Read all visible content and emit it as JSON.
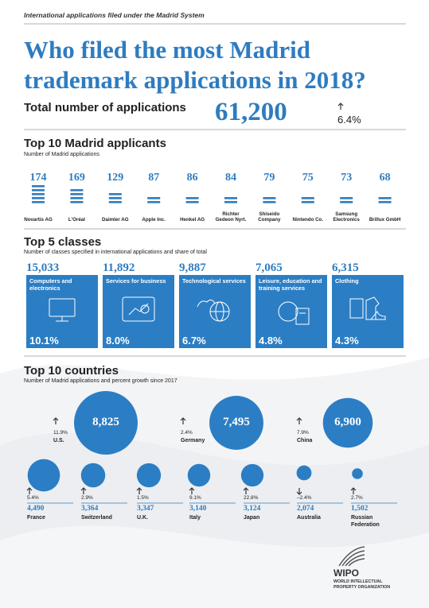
{
  "header": {
    "kicker": "International applications filed under the Madrid System",
    "title": "Who filed the most Madrid trademark applications in 2018?"
  },
  "total": {
    "label": "Total number of applications",
    "value": "61,200",
    "growth": "6.4%"
  },
  "applicants": {
    "title": "Top 10 Madrid applicants",
    "subtitle": "Number of Madrid applications",
    "items": [
      {
        "name": "Novartis AG",
        "value": 174
      },
      {
        "name": "L'Oréal",
        "value": 169
      },
      {
        "name": "Daimler AG",
        "value": 129
      },
      {
        "name": "Apple Inc.",
        "value": 87
      },
      {
        "name": "Henkel AG",
        "value": 86
      },
      {
        "name": "Richter Gedeon Nyrt.",
        "value": 84
      },
      {
        "name": "Shiseido Company",
        "value": 79
      },
      {
        "name": "Nintendo Co.",
        "value": 75
      },
      {
        "name": "Samsung Electronics",
        "value": 73
      },
      {
        "name": "Brillux GmbH",
        "value": 68
      }
    ]
  },
  "classes": {
    "title": "Top 5 classes",
    "subtitle": "Number of classes specified in international applications and share of total",
    "items": [
      {
        "name": "Computers and electronics",
        "value": "15,033",
        "share": "10.1%"
      },
      {
        "name": "Services for business",
        "value": "11,892",
        "share": "8.0%"
      },
      {
        "name": "Technological services",
        "value": "9,887",
        "share": "6.7%"
      },
      {
        "name": "Leisure, education and training services",
        "value": "7,065",
        "share": "4.8%"
      },
      {
        "name": "Clothing",
        "value": "6,315",
        "share": "4.3%"
      }
    ]
  },
  "countries": {
    "title": "Top 10 countries",
    "subtitle": "Number of Madrid applications and percent growth since 2017",
    "items": [
      {
        "name": "U.S.",
        "value": {
          "value": 8825,
          "label": "8,825"
        },
        "growth": "11.9%"
      },
      {
        "name": "Germany",
        "value": {
          "value": 7495,
          "label": "7,495"
        },
        "growth": "2.4%"
      },
      {
        "name": "China",
        "value": {
          "value": 6900,
          "label": "6,900"
        },
        "growth": "7.9%"
      },
      {
        "name": "France",
        "value": {
          "value": 4490,
          "label": "4,490"
        },
        "growth": "5.4%"
      },
      {
        "name": "Switzerland",
        "value": {
          "value": 3364,
          "label": "3,364"
        },
        "growth": "2.9%"
      },
      {
        "name": "U.K.",
        "value": {
          "value": 3347,
          "label": "3,347"
        },
        "growth": "1.5%"
      },
      {
        "name": "Italy",
        "value": {
          "value": 3140,
          "label": "3,140"
        },
        "growth": "9.1%"
      },
      {
        "name": "Japan",
        "value": {
          "value": 3124,
          "label": "3,124"
        },
        "growth": "22.8%"
      },
      {
        "name": "Australia",
        "value": {
          "value": 2074,
          "label": "2,074"
        },
        "growth": "–2.4%"
      },
      {
        "name": "Russian Federation",
        "value": {
          "value": 1502,
          "label": "1,502"
        },
        "growth": "2.7%"
      }
    ]
  },
  "logo": {
    "name": "WIPO",
    "full": "WORLD INTELLECTUAL PROPERTY ORGANIZATION"
  }
}
